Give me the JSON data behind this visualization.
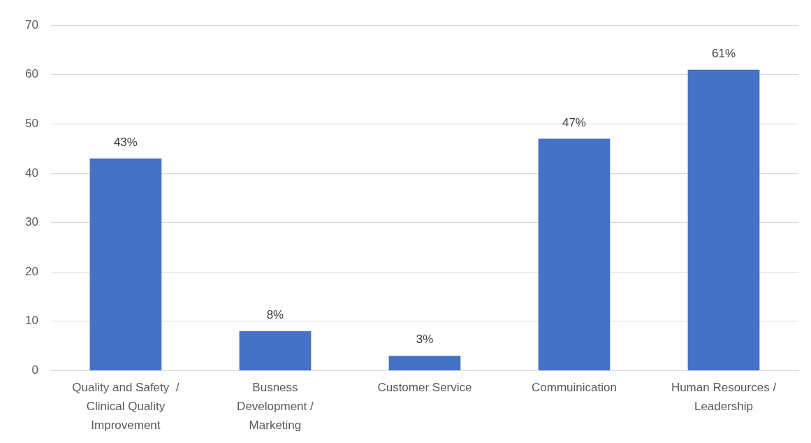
{
  "chart_data": {
    "type": "bar",
    "categories": [
      "Quality and Safety  /\nClinical Quality\nImprovement",
      "Busness\nDevelopment /\nMarketing",
      "Customer Service",
      "Commuinication",
      "Human Resources /\nLeadership"
    ],
    "values": [
      43,
      8,
      3,
      47,
      61
    ],
    "value_labels": [
      "43%",
      "8%",
      "3%",
      "47%",
      "61%"
    ],
    "color": "#4472c4",
    "ylim": [
      0,
      70
    ],
    "yticks": [
      0,
      10,
      20,
      30,
      40,
      50,
      60,
      70
    ],
    "grid": "y",
    "legend": false
  }
}
